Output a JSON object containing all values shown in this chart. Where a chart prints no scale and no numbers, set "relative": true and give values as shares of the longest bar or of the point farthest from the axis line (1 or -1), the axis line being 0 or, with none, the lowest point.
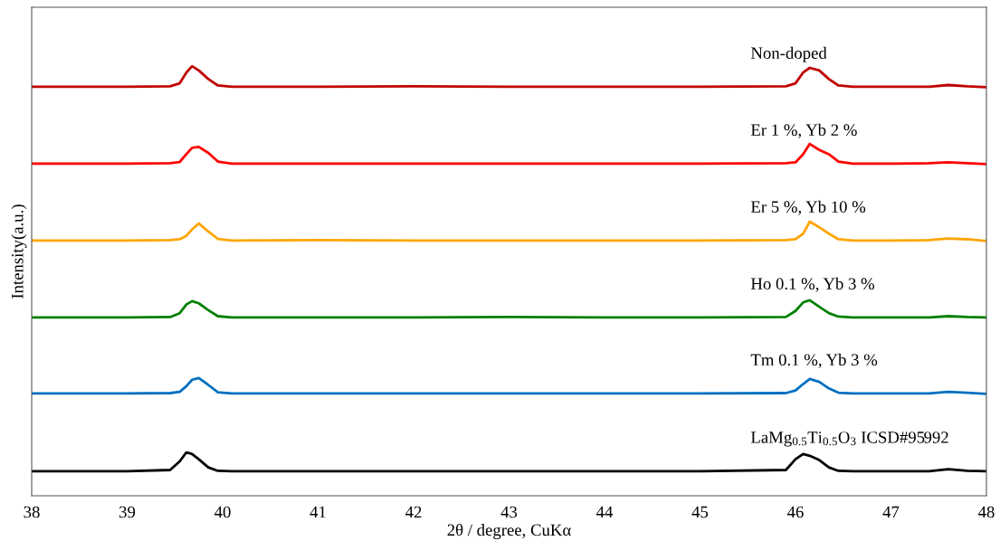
{
  "chart_data": {
    "type": "line",
    "relative": true,
    "xlabel": "2θ / degree, CuKα",
    "ylabel": "Intensity(a.u.)",
    "xlim": [
      38,
      48
    ],
    "xticks": [
      38,
      39,
      40,
      41,
      42,
      43,
      44,
      45,
      46,
      47,
      48
    ],
    "grid": false,
    "legend": false,
    "marker": "none",
    "line_style": "solid",
    "x": [
      38,
      39,
      39.45,
      39.55,
      39.62,
      39.68,
      39.75,
      39.85,
      39.95,
      40.1,
      41,
      42,
      43,
      44,
      45,
      45.9,
      46.0,
      46.08,
      46.15,
      46.25,
      46.35,
      46.45,
      46.6,
      47,
      47.4,
      47.6,
      47.8,
      48
    ],
    "series": [
      {
        "name": "Non-doped",
        "color": "#c00000",
        "values": [
          0.952,
          0.952,
          0.953,
          0.96,
          0.985,
          1.0,
          0.99,
          0.97,
          0.955,
          0.952,
          0.952,
          0.953,
          0.952,
          0.952,
          0.952,
          0.953,
          0.96,
          0.985,
          0.996,
          0.99,
          0.97,
          0.955,
          0.952,
          0.952,
          0.952,
          0.956,
          0.953,
          0.951
        ]
      },
      {
        "name": "Er 1 %, Yb 2 %",
        "color": "#ff0000",
        "values": [
          0.773,
          0.773,
          0.774,
          0.777,
          0.795,
          0.81,
          0.812,
          0.798,
          0.778,
          0.773,
          0.773,
          0.773,
          0.773,
          0.773,
          0.773,
          0.774,
          0.776,
          0.795,
          0.819,
          0.805,
          0.795,
          0.778,
          0.773,
          0.773,
          0.774,
          0.776,
          0.774,
          0.772
        ]
      },
      {
        "name": "Er 5 %, Yb 10 %",
        "color": "#ffa500",
        "values": [
          0.594,
          0.594,
          0.595,
          0.597,
          0.605,
          0.62,
          0.634,
          0.615,
          0.598,
          0.594,
          0.595,
          0.594,
          0.594,
          0.594,
          0.594,
          0.595,
          0.597,
          0.61,
          0.638,
          0.625,
          0.61,
          0.597,
          0.594,
          0.594,
          0.595,
          0.599,
          0.597,
          0.593
        ]
      },
      {
        "name": "Ho 0.1 %, Yb 3 %",
        "color": "#008000",
        "values": [
          0.415,
          0.415,
          0.416,
          0.425,
          0.445,
          0.453,
          0.448,
          0.432,
          0.418,
          0.415,
          0.415,
          0.415,
          0.416,
          0.415,
          0.415,
          0.416,
          0.43,
          0.45,
          0.455,
          0.44,
          0.425,
          0.417,
          0.415,
          0.415,
          0.415,
          0.418,
          0.416,
          0.415
        ]
      },
      {
        "name": "Tm 0.1 %, Yb 3 %",
        "color": "#0070c0",
        "values": [
          0.238,
          0.238,
          0.239,
          0.242,
          0.255,
          0.27,
          0.274,
          0.258,
          0.241,
          0.238,
          0.238,
          0.238,
          0.238,
          0.238,
          0.238,
          0.239,
          0.245,
          0.26,
          0.272,
          0.265,
          0.25,
          0.24,
          0.238,
          0.238,
          0.238,
          0.242,
          0.24,
          0.237
        ]
      },
      {
        "name": "LaMg$_{0.5}$Ti$_{0.5}$O$_{3}$ ICSD#95992",
        "color": "#000000",
        "values": [
          0.057,
          0.057,
          0.06,
          0.08,
          0.101,
          0.097,
          0.085,
          0.066,
          0.058,
          0.057,
          0.057,
          0.057,
          0.057,
          0.057,
          0.057,
          0.06,
          0.085,
          0.097,
          0.093,
          0.083,
          0.066,
          0.058,
          0.057,
          0.057,
          0.057,
          0.062,
          0.058,
          0.057
        ]
      }
    ]
  }
}
